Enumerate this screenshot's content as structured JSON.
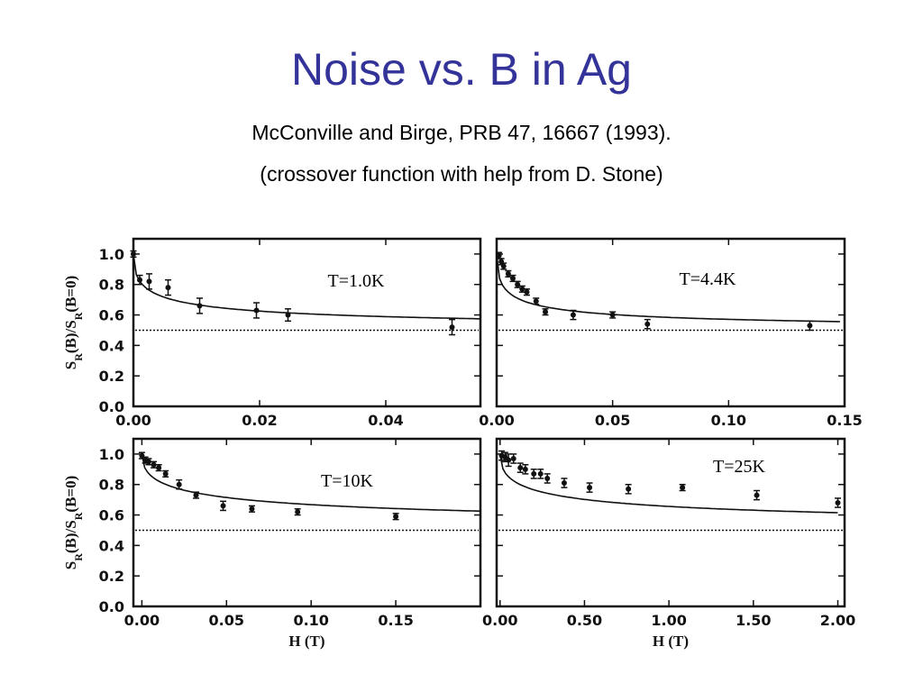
{
  "slide": {
    "title": "Noise vs. B in Ag",
    "subtitle1": "McConville and Birge, PRB 47, 16667 (1993).",
    "subtitle2": "(crossover function with help from D. Stone)"
  },
  "colors": {
    "title": "#333399",
    "ink": "#111111"
  },
  "chart_data": [
    {
      "type": "scatter",
      "panel_label": "T=1.0K",
      "ylabel": "S_R(B)/S_R(B=0)",
      "xlabel": "",
      "xlim": [
        0,
        0.055
      ],
      "ylim": [
        0,
        1.1
      ],
      "xticks": [
        0,
        0.02,
        0.04
      ],
      "xtick_labels": [
        "0.00",
        "0.02",
        "0.04"
      ],
      "yticks": [
        0,
        0.2,
        0.4,
        0.6,
        0.8,
        1.0
      ],
      "ytick_labels": [
        "0.0",
        "0.2",
        "0.4",
        "0.6",
        "0.8",
        "1.0"
      ],
      "reference_line": 0.5,
      "points": [
        {
          "x": 0.0,
          "y": 1.0,
          "err": 0.02
        },
        {
          "x": 0.001,
          "y": 0.83,
          "err": 0.03
        },
        {
          "x": 0.0025,
          "y": 0.82,
          "err": 0.05
        },
        {
          "x": 0.0055,
          "y": 0.78,
          "err": 0.05
        },
        {
          "x": 0.0105,
          "y": 0.66,
          "err": 0.05
        },
        {
          "x": 0.0195,
          "y": 0.63,
          "err": 0.05
        },
        {
          "x": 0.0245,
          "y": 0.6,
          "err": 0.04
        },
        {
          "x": 0.0505,
          "y": 0.52,
          "err": 0.05
        }
      ],
      "fit": {
        "x0": 0.003,
        "xmax": 0.055
      }
    },
    {
      "type": "scatter",
      "panel_label": "T=4.4K",
      "ylabel": "",
      "xlabel": "",
      "xlim": [
        0,
        0.15
      ],
      "ylim": [
        0,
        1.1
      ],
      "xticks": [
        0,
        0.05,
        0.1,
        0.15
      ],
      "xtick_labels": [
        "0.00",
        "0.05",
        "0.10",
        "0.15"
      ],
      "yticks": [
        0,
        0.2,
        0.4,
        0.6,
        0.8,
        1.0
      ],
      "ytick_labels": [],
      "reference_line": 0.5,
      "points": [
        {
          "x": 0.001,
          "y": 0.99,
          "err": 0.02
        },
        {
          "x": 0.002,
          "y": 0.95,
          "err": 0.02
        },
        {
          "x": 0.003,
          "y": 0.92,
          "err": 0.02
        },
        {
          "x": 0.005,
          "y": 0.87,
          "err": 0.02
        },
        {
          "x": 0.007,
          "y": 0.84,
          "err": 0.02
        },
        {
          "x": 0.009,
          "y": 0.8,
          "err": 0.02
        },
        {
          "x": 0.011,
          "y": 0.77,
          "err": 0.02
        },
        {
          "x": 0.013,
          "y": 0.75,
          "err": 0.02
        },
        {
          "x": 0.017,
          "y": 0.69,
          "err": 0.02
        },
        {
          "x": 0.021,
          "y": 0.62,
          "err": 0.02
        },
        {
          "x": 0.033,
          "y": 0.6,
          "err": 0.03
        },
        {
          "x": 0.05,
          "y": 0.6,
          "err": 0.02
        },
        {
          "x": 0.065,
          "y": 0.54,
          "err": 0.03
        },
        {
          "x": 0.135,
          "y": 0.53,
          "err": 0.03
        }
      ],
      "fit": {
        "x0": 0.005,
        "xmax": 0.148
      }
    },
    {
      "type": "scatter",
      "panel_label": "T=10K",
      "ylabel": "S_R(B)/S_R(B=0)",
      "xlabel": "H (T)",
      "xlim": [
        -0.005,
        0.2
      ],
      "ylim": [
        0,
        1.1
      ],
      "xticks": [
        0,
        0.05,
        0.1,
        0.15
      ],
      "xtick_labels": [
        "0.00",
        "0.05",
        "0.10",
        "0.15"
      ],
      "yticks": [
        0,
        0.2,
        0.4,
        0.6,
        0.8,
        1.0
      ],
      "ytick_labels": [
        "0.0",
        "0.2",
        "0.4",
        "0.6",
        "0.8",
        "1.0"
      ],
      "reference_line": 0.5,
      "points": [
        {
          "x": 0.0,
          "y": 0.99,
          "err": 0.02
        },
        {
          "x": 0.002,
          "y": 0.96,
          "err": 0.02
        },
        {
          "x": 0.004,
          "y": 0.95,
          "err": 0.02
        },
        {
          "x": 0.007,
          "y": 0.93,
          "err": 0.02
        },
        {
          "x": 0.01,
          "y": 0.91,
          "err": 0.02
        },
        {
          "x": 0.014,
          "y": 0.87,
          "err": 0.02
        },
        {
          "x": 0.022,
          "y": 0.8,
          "err": 0.03
        },
        {
          "x": 0.032,
          "y": 0.73,
          "err": 0.02
        },
        {
          "x": 0.048,
          "y": 0.66,
          "err": 0.03
        },
        {
          "x": 0.065,
          "y": 0.64,
          "err": 0.02
        },
        {
          "x": 0.092,
          "y": 0.62,
          "err": 0.02
        },
        {
          "x": 0.15,
          "y": 0.59,
          "err": 0.02
        }
      ],
      "fit": {
        "x0": 0.03,
        "xmax": 0.2
      }
    },
    {
      "type": "scatter",
      "panel_label": "T=25K",
      "ylabel": "",
      "xlabel": "H (T)",
      "xlim": [
        -0.02,
        2.04
      ],
      "ylim": [
        0,
        1.1
      ],
      "xticks": [
        0,
        0.5,
        1.0,
        1.5,
        2.0
      ],
      "xtick_labels": [
        "0.00",
        "0.50",
        "1.00",
        "1.50",
        "2.00"
      ],
      "yticks": [
        0,
        0.2,
        0.4,
        0.6,
        0.8,
        1.0
      ],
      "ytick_labels": [],
      "reference_line": 0.5,
      "points": [
        {
          "x": 0.01,
          "y": 0.99,
          "err": 0.03
        },
        {
          "x": 0.03,
          "y": 0.98,
          "err": 0.03
        },
        {
          "x": 0.05,
          "y": 0.96,
          "err": 0.04
        },
        {
          "x": 0.08,
          "y": 0.97,
          "err": 0.03
        },
        {
          "x": 0.12,
          "y": 0.91,
          "err": 0.03
        },
        {
          "x": 0.15,
          "y": 0.9,
          "err": 0.03
        },
        {
          "x": 0.2,
          "y": 0.87,
          "err": 0.03
        },
        {
          "x": 0.24,
          "y": 0.87,
          "err": 0.03
        },
        {
          "x": 0.28,
          "y": 0.84,
          "err": 0.03
        },
        {
          "x": 0.38,
          "y": 0.81,
          "err": 0.03
        },
        {
          "x": 0.53,
          "y": 0.78,
          "err": 0.03
        },
        {
          "x": 0.76,
          "y": 0.77,
          "err": 0.03
        },
        {
          "x": 1.08,
          "y": 0.78,
          "err": 0.02
        },
        {
          "x": 1.52,
          "y": 0.73,
          "err": 0.03
        },
        {
          "x": 2.0,
          "y": 0.68,
          "err": 0.03
        }
      ],
      "fit": {
        "x0": 0.25,
        "xmax": 2.0
      }
    }
  ]
}
